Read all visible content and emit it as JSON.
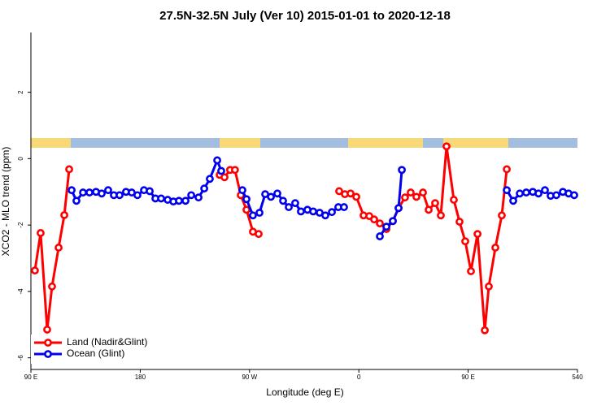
{
  "chart_data": {
    "type": "line",
    "title": "27.5N-32.5N July (Ver 10)   2015-01-01 to 2020-12-18",
    "xlabel": "Longitude (deg E)",
    "ylabel": "XCO2 - MLO trend (ppm)",
    "xlim": [
      90,
      540
    ],
    "ylim": [
      -6.35,
      3.8
    ],
    "xticks": [
      {
        "value": 90,
        "label": "90 E"
      },
      180,
      {
        "value": 270,
        "label": "90 W"
      },
      {
        "value": 360,
        "label": "0"
      },
      {
        "value": 450,
        "label": "90 E"
      },
      540
    ],
    "yticks": [
      -6,
      -4,
      -2,
      0,
      2
    ],
    "legend": "bottom-left",
    "series": [
      {
        "name": "Land (Nadir&Glint)",
        "color": "#ff0000",
        "x": [
          93.3,
          98,
          103.4,
          107.4,
          112.8,
          117.5,
          121.5,
          null,
          245.4,
          249.4,
          254,
          258,
          262.8,
          267.5,
          272.8,
          277.5,
          null,
          343.8,
          348.5,
          353.2,
          357.9,
          363.9,
          368.6,
          372.6,
          377.3,
          382.7,
          388,
          392.7,
          398,
          402.7,
          407.4,
          412.8,
          417.5,
          422.8,
          427.5,
          432.2,
          438.2,
          442.9,
          447.6,
          452.3,
          457.7,
          463.7,
          467,
          472.4,
          477.7,
          481.8
        ],
        "values": [
          -3.37,
          -2.24,
          -5.15,
          -3.85,
          -2.68,
          -1.7,
          -0.32,
          null,
          -0.49,
          -0.56,
          -0.34,
          -0.34,
          -1.1,
          -1.54,
          -2.2,
          -2.27,
          null,
          -0.98,
          -1.07,
          -1.05,
          -1.15,
          -1.71,
          -1.73,
          -1.83,
          -1.95,
          -2.12,
          -1.88,
          -1.49,
          -1.17,
          -1.02,
          -1.15,
          -1.02,
          -1.54,
          -1.34,
          -1.71,
          0.37,
          -1.24,
          -1.9,
          -2.49,
          -3.39,
          -2.27,
          -5.17,
          -3.85,
          -2.68,
          -1.71,
          -0.32
        ]
      },
      {
        "name": "Ocean (Glint)",
        "color": "#0000ee",
        "x": [
          123.5,
          127.5,
          132.9,
          138.2,
          143.6,
          148.3,
          153.6,
          158.3,
          163,
          168.3,
          173,
          177.7,
          183.1,
          187.8,
          192.5,
          197.2,
          202.6,
          207.3,
          211.9,
          217.3,
          222,
          228,
          232.7,
          237.3,
          243.4,
          246.7,
          null,
          264.1,
          267.5,
          272.8,
          278.2,
          282.9,
          287.6,
          292.9,
          297.6,
          302.3,
          307.6,
          312.3,
          317.7,
          322.4,
          327.7,
          332.4,
          337.8,
          343.1,
          347.8,
          null,
          377.3,
          382.7,
          388,
          392.7,
          395.4,
          null,
          481.8,
          487.1,
          492.5,
          497.8,
          503.2,
          507.9,
          513.2,
          517.9,
          522.6,
          528,
          532.7,
          537.3
        ],
        "values": [
          -0.95,
          -1.27,
          -1.02,
          -1.02,
          -1.0,
          -1.05,
          -0.95,
          -1.1,
          -1.1,
          -1.0,
          -1.02,
          -1.1,
          -0.95,
          -0.98,
          -1.2,
          -1.2,
          -1.24,
          -1.29,
          -1.27,
          -1.27,
          -1.1,
          -1.17,
          -0.9,
          -0.61,
          -0.05,
          -0.37,
          null,
          -0.95,
          -1.22,
          -1.71,
          -1.63,
          -1.07,
          -1.15,
          -1.05,
          -1.27,
          -1.46,
          -1.34,
          -1.59,
          -1.54,
          -1.59,
          -1.63,
          -1.71,
          -1.61,
          -1.46,
          -1.46,
          null,
          -2.34,
          -2.05,
          -1.88,
          -1.49,
          -0.34,
          null,
          -0.95,
          -1.27,
          -1.05,
          -1.02,
          -1.0,
          -1.05,
          -0.95,
          -1.12,
          -1.1,
          -1.0,
          -1.05,
          -1.1
        ]
      }
    ]
  }
}
